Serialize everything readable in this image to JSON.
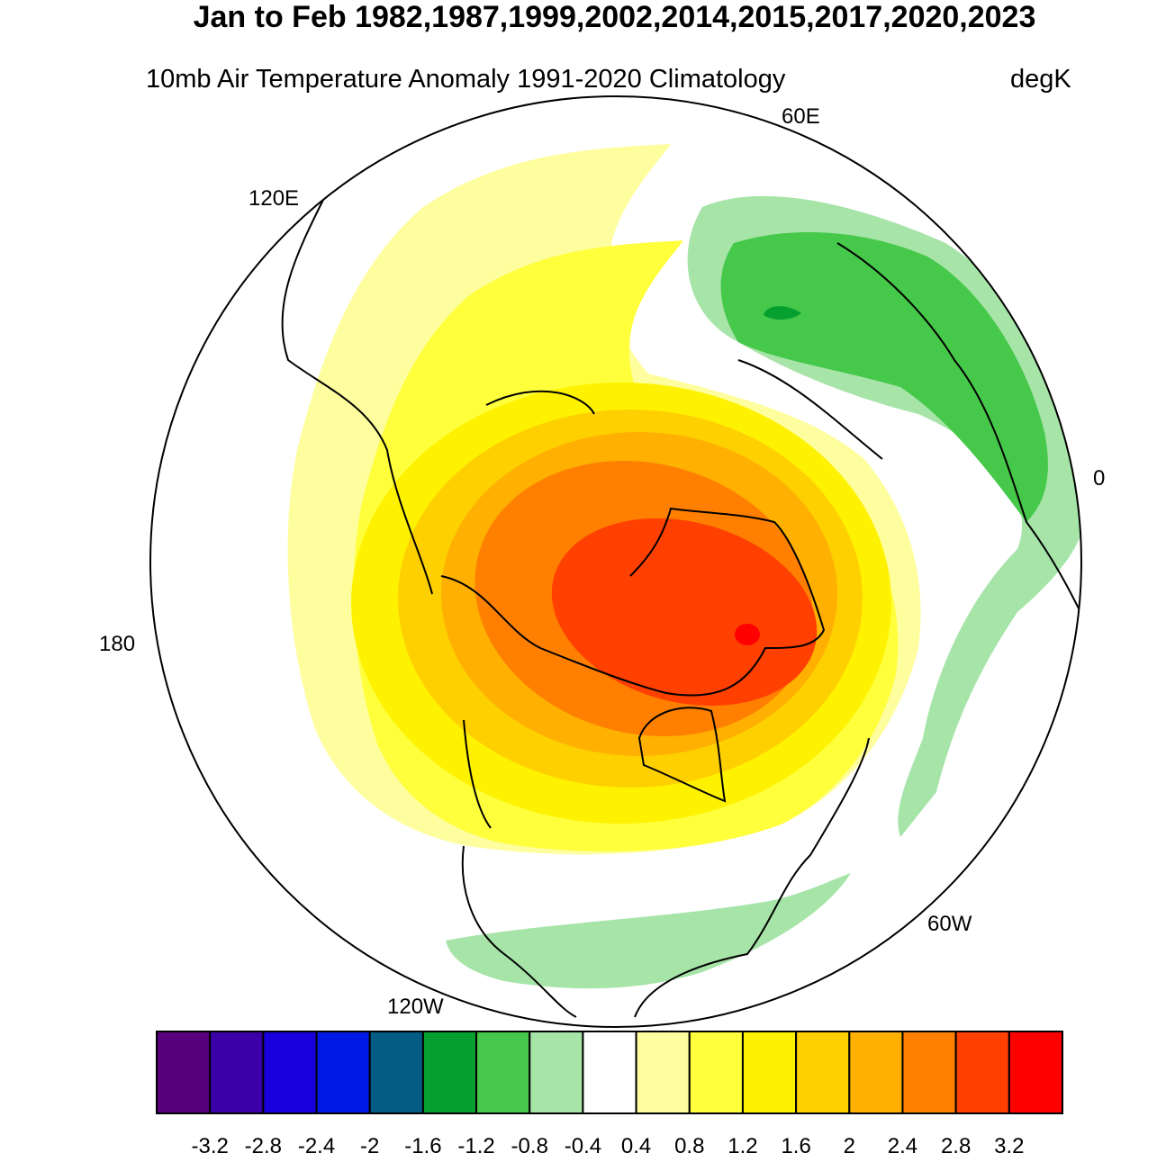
{
  "title": "Jan to Feb 1982,1987,1999,2002,2014,2015,2017,2020,2023",
  "subtitle_left": "10mb Air Temperature Anomaly  1991-2020 Climatology",
  "subtitle_right": "degK",
  "projection": "north polar stereographic",
  "longitude_labels": {
    "e60": "60E",
    "e120": "120E",
    "lon180": "180",
    "w120": "120W",
    "w60": "60W",
    "lon0": "0"
  },
  "colorbar": {
    "colors": [
      "#58007e",
      "#3c00a8",
      "#1800dc",
      "#0019e4",
      "#045c84",
      "#06a030",
      "#46c84a",
      "#a6e4a8",
      "#ffffff",
      "#fffe9e",
      "#ffff3c",
      "#fff200",
      "#ffd000",
      "#ffb000",
      "#ff8000",
      "#ff4000",
      "#ff0000"
    ],
    "labels": [
      "-3.2",
      "-2.8",
      "-2.4",
      "-2",
      "-1.6",
      "-1.2",
      "-0.8",
      "-0.4",
      "0.4",
      "0.8",
      "1.2",
      "1.6",
      "2",
      "2.4",
      "2.8",
      "3.2"
    ]
  }
}
